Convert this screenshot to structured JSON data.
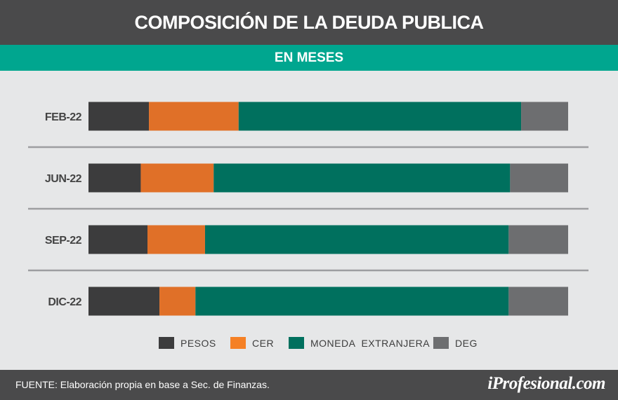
{
  "header": {
    "title": "COMPOSICIÓN DE LA DEUDA PUBLICA"
  },
  "subheader": {
    "label": "EN MESES"
  },
  "chart_data": {
    "type": "bar",
    "orientation": "horizontal",
    "stacked": true,
    "normalized": true,
    "categories": [
      "FEB-22",
      "JUN-22",
      "SEP-22",
      "DIC-22"
    ],
    "series": [
      {
        "name": "PESOS",
        "color": "#3c3c3d",
        "values": [
          12.6,
          10.9,
          12.3,
          14.8
        ]
      },
      {
        "name": "CER",
        "color": "#e07028",
        "values": [
          18.7,
          15.2,
          12.0,
          7.5
        ]
      },
      {
        "name": "MONEDA  EXTRANJERA",
        "color": "#00705e",
        "values": [
          58.9,
          61.8,
          63.3,
          65.3
        ]
      },
      {
        "name": "DEG",
        "color": "#6d6e70",
        "values": [
          9.8,
          12.1,
          12.4,
          12.4
        ]
      }
    ],
    "title": "COMPOSICIÓN DE LA DEUDA PUBLICA",
    "xlabel": "",
    "ylabel": "",
    "xlim": [
      0,
      100
    ],
    "legend_position": "bottom"
  },
  "footer": {
    "source": "FUENTE: Elaboración propia en base a Sec. de Finanzas.",
    "logo": "iProfesional.com"
  }
}
